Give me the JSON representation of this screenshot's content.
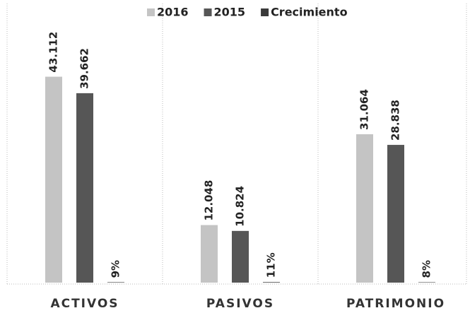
{
  "chart_data": {
    "type": "bar",
    "categories": [
      "ACTIVOS",
      "PASIVOS",
      "PATRIMONIO"
    ],
    "series": [
      {
        "name": "2016",
        "color": "#c4c4c4",
        "values": [
          43.112,
          12.048,
          31.064
        ]
      },
      {
        "name": "2015",
        "color": "#565656",
        "values": [
          39.662,
          10.824,
          28.838
        ]
      },
      {
        "name": "Crecimiento",
        "color": "#3a3a3a",
        "values": [
          0.09,
          0.11,
          0.08
        ],
        "value_labels": [
          "9%",
          "11%",
          "8%"
        ]
      }
    ],
    "ylim": [
      0,
      50
    ],
    "legend": "top"
  }
}
